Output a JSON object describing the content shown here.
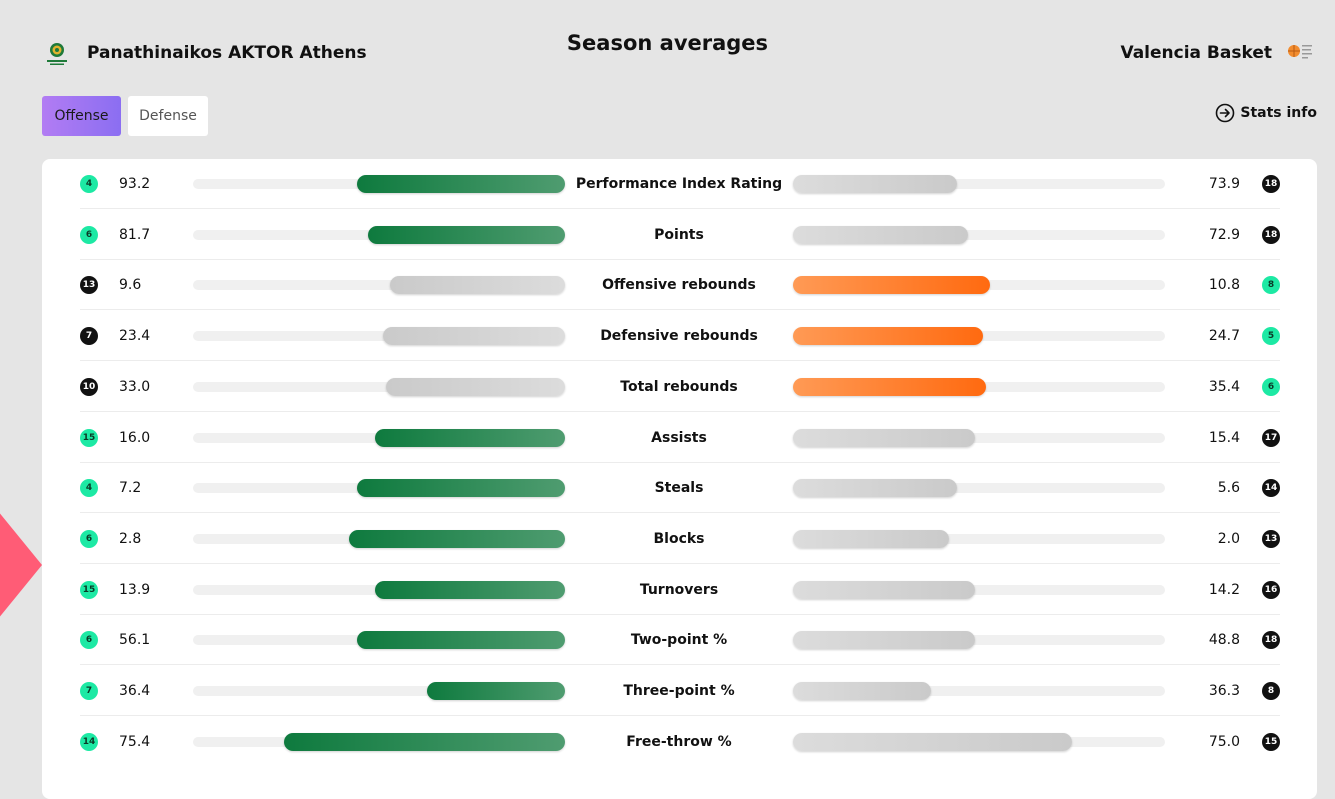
{
  "header": {
    "title": "Season averages",
    "home_team": "Panathinaikos AKTOR Athens",
    "away_team": "Valencia Basket",
    "home_logo_icon": "panathinaikos-logo-icon",
    "away_logo_icon": "valencia-basket-logo-icon"
  },
  "tabs": {
    "offense": "Offense",
    "defense": "Defense",
    "active": "Offense"
  },
  "stats_info": {
    "label": "Stats info",
    "icon": "arrow-circle-right-icon"
  },
  "colors": {
    "home_lead": "#0e7a3e",
    "away_lead": "#ff6a10",
    "trailing": "#d0d0d0",
    "rank_top": "#1de9a4",
    "rank_other": "#111111",
    "tab_active": "#9b74f2",
    "accent_shape": "#ff5c76"
  },
  "stats": [
    {
      "label": "Performance Index Rating",
      "home_rank": "4",
      "home_value": "93.2",
      "home_fill": 0.56,
      "away_value": "73.9",
      "away_rank": "18",
      "away_fill": 0.44,
      "leader": "home",
      "home_rank_top": true,
      "away_rank_top": false
    },
    {
      "label": "Points",
      "home_rank": "6",
      "home_value": "81.7",
      "home_fill": 0.53,
      "away_value": "72.9",
      "away_rank": "18",
      "away_fill": 0.47,
      "leader": "home",
      "home_rank_top": true,
      "away_rank_top": false
    },
    {
      "label": "Offensive rebounds",
      "home_rank": "13",
      "home_value": "9.6",
      "home_fill": 0.47,
      "away_value": "10.8",
      "away_rank": "8",
      "away_fill": 0.53,
      "leader": "away",
      "home_rank_top": false,
      "away_rank_top": true
    },
    {
      "label": "Defensive rebounds",
      "home_rank": "7",
      "home_value": "23.4",
      "home_fill": 0.49,
      "away_value": "24.7",
      "away_rank": "5",
      "away_fill": 0.51,
      "leader": "away",
      "home_rank_top": false,
      "away_rank_top": true
    },
    {
      "label": "Total rebounds",
      "home_rank": "10",
      "home_value": "33.0",
      "home_fill": 0.48,
      "away_value": "35.4",
      "away_rank": "6",
      "away_fill": 0.52,
      "leader": "away",
      "home_rank_top": false,
      "away_rank_top": true
    },
    {
      "label": "Assists",
      "home_rank": "15",
      "home_value": "16.0",
      "home_fill": 0.51,
      "away_value": "15.4",
      "away_rank": "17",
      "away_fill": 0.49,
      "leader": "home",
      "home_rank_top": true,
      "away_rank_top": false
    },
    {
      "label": "Steals",
      "home_rank": "4",
      "home_value": "7.2",
      "home_fill": 0.56,
      "away_value": "5.6",
      "away_rank": "14",
      "away_fill": 0.44,
      "leader": "home",
      "home_rank_top": true,
      "away_rank_top": false
    },
    {
      "label": "Blocks",
      "home_rank": "6",
      "home_value": "2.8",
      "home_fill": 0.58,
      "away_value": "2.0",
      "away_rank": "13",
      "away_fill": 0.42,
      "leader": "home",
      "home_rank_top": true,
      "away_rank_top": false
    },
    {
      "label": "Turnovers",
      "home_rank": "15",
      "home_value": "13.9",
      "home_fill": 0.51,
      "away_value": "14.2",
      "away_rank": "16",
      "away_fill": 0.49,
      "leader": "home",
      "home_rank_top": true,
      "away_rank_top": false
    },
    {
      "label": "Two-point %",
      "home_rank": "6",
      "home_value": "56.1",
      "home_fill": 0.56,
      "away_value": "48.8",
      "away_rank": "18",
      "away_fill": 0.49,
      "leader": "home",
      "home_rank_top": true,
      "away_rank_top": false
    },
    {
      "label": "Three-point %",
      "home_rank": "7",
      "home_value": "36.4",
      "home_fill": 0.37,
      "away_value": "36.3",
      "away_rank": "8",
      "away_fill": 0.37,
      "leader": "home",
      "home_rank_top": true,
      "away_rank_top": false
    },
    {
      "label": "Free-throw %",
      "home_rank": "14",
      "home_value": "75.4",
      "home_fill": 0.755,
      "away_value": "75.0",
      "away_rank": "15",
      "away_fill": 0.75,
      "leader": "home",
      "home_rank_top": true,
      "away_rank_top": false
    }
  ]
}
